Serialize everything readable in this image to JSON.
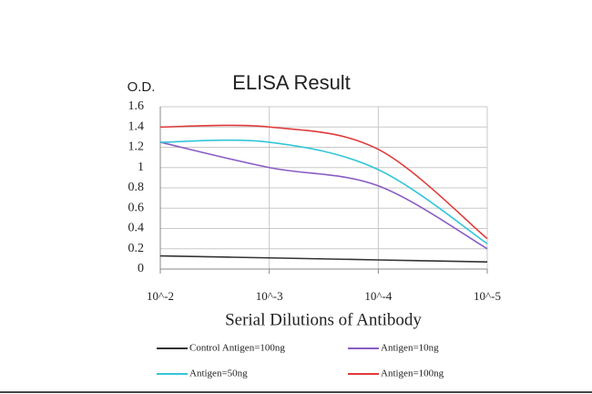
{
  "chart_data": {
    "type": "line",
    "title": "ELISA Result",
    "y_label": "O.D.",
    "x_label": "Serial Dilutions of Antibody",
    "categories": [
      "10^-2",
      "10^-3",
      "10^-4",
      "10^-5"
    ],
    "series": [
      {
        "name": "Control Antigen=100ng",
        "color": "#333333",
        "values": [
          0.13,
          0.11,
          0.09,
          0.07
        ]
      },
      {
        "name": "Antigen=10ng",
        "color": "#8a5cc4",
        "values": [
          1.25,
          1.0,
          0.82,
          0.2
        ]
      },
      {
        "name": "Antigen=50ng",
        "color": "#33c6d8",
        "values": [
          1.25,
          1.25,
          0.98,
          0.25
        ]
      },
      {
        "name": "Antigen=100ng",
        "color": "#e03a3a",
        "values": [
          1.4,
          1.4,
          1.18,
          0.3
        ]
      }
    ],
    "ylim": [
      0,
      1.6
    ],
    "yticks": [
      0,
      0.2,
      0.4,
      0.6,
      0.8,
      1,
      1.2,
      1.4,
      1.6
    ],
    "grid": true
  }
}
